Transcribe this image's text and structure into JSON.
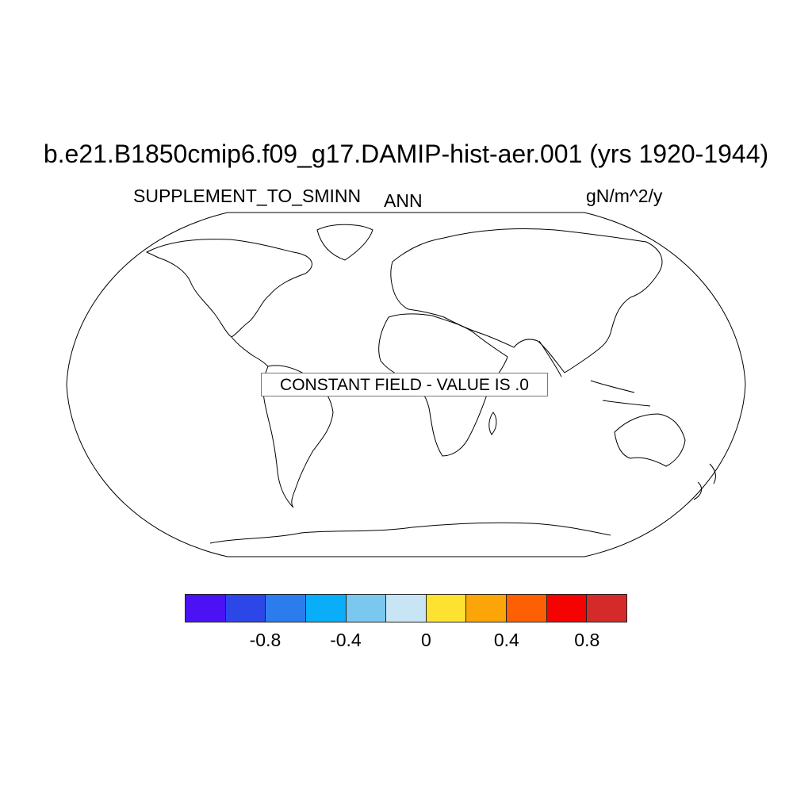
{
  "title": "b.e21.B1850cmip6.f09_g17.DAMIP-hist-aer.001 (yrs 1920-1944)",
  "left_label": "SUPPLEMENT_TO_SMINN",
  "center_label": "ANN",
  "right_label": "gN/m^2/y",
  "overlay_text": "CONSTANT FIELD - VALUE IS .0",
  "map": {
    "projection": "Robinson",
    "content": "coastlines"
  },
  "colorbar": {
    "colors": [
      "#4a12f4",
      "#2c46e8",
      "#2d7cee",
      "#0aaef8",
      "#7ac7ef",
      "#c7e5f5",
      "#fde232",
      "#fca508",
      "#fd5f05",
      "#f50202",
      "#d42a2a"
    ],
    "tick_labels": [
      "-0.8",
      "-0.4",
      "0",
      "0.4",
      "0.8"
    ]
  }
}
